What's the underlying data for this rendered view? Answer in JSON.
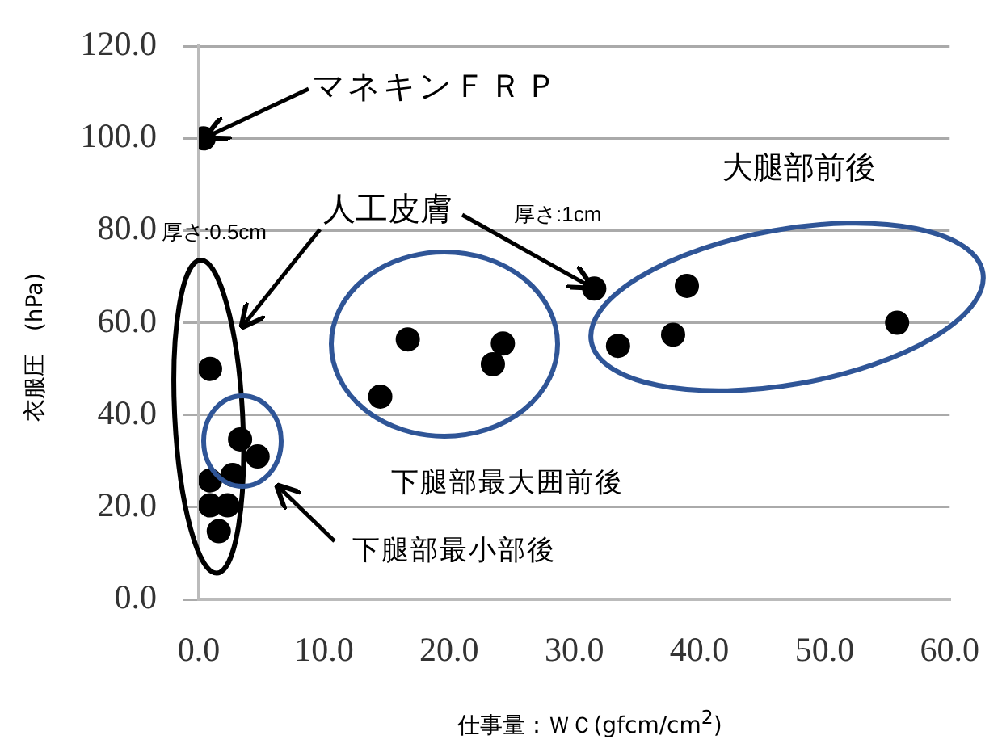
{
  "chart_data": {
    "type": "scatter",
    "xlabel": "仕事量：ＷＣ(gfcm/cm$^{2}$)",
    "ylabel": "衣服圧　(hPa)",
    "x": [
      0.4,
      0.9,
      3.3,
      4.7,
      2.7,
      0.9,
      0.9,
      2.3,
      1.6,
      14.5,
      16.7,
      23.5,
      24.3,
      31.6,
      33.5,
      37.9,
      39.0,
      55.8
    ],
    "series": [
      {
        "color": "#000000",
        "values": [
          100,
          50,
          34.7,
          31,
          27,
          25.8,
          20.4,
          20.4,
          14.8,
          44,
          56.4,
          51,
          55.5,
          67.4,
          55,
          57.4,
          68,
          60
        ]
      }
    ],
    "xlim": [
      0,
      60
    ],
    "ylim": [
      0,
      120
    ],
    "xticks": [
      {
        "value": 0,
        "label": "0.0"
      },
      {
        "value": 10,
        "label": "10.0"
      },
      {
        "value": 20,
        "label": "20.0"
      },
      {
        "value": 30,
        "label": "30.0"
      },
      {
        "value": 40,
        "label": "40.0"
      },
      {
        "value": 50,
        "label": "50.0"
      },
      {
        "value": 60,
        "label": "60.0"
      }
    ],
    "yticks": [
      {
        "value": 0,
        "label": "0.0"
      },
      {
        "value": 20,
        "label": "20.0"
      },
      {
        "value": 40,
        "label": "40.0"
      },
      {
        "value": 60,
        "label": "60.0"
      },
      {
        "value": 80,
        "label": "80.0"
      },
      {
        "value": 100,
        "label": "100.0"
      },
      {
        "value": 120,
        "label": "120.0"
      }
    ],
    "grid": "y",
    "marker": "circle",
    "legend": false,
    "annotations": [
      {
        "text": "マネキンＦＲＰ",
        "x": 0.4,
        "y": 100
      },
      {
        "text": "人工皮膚",
        "x": 31.6,
        "y": 67.4
      },
      "厚さ:0.5cm",
      "厚さ:1cm",
      "大腿部前後",
      "下腿部最大囲前後",
      "下腿部最小部後"
    ]
  }
}
